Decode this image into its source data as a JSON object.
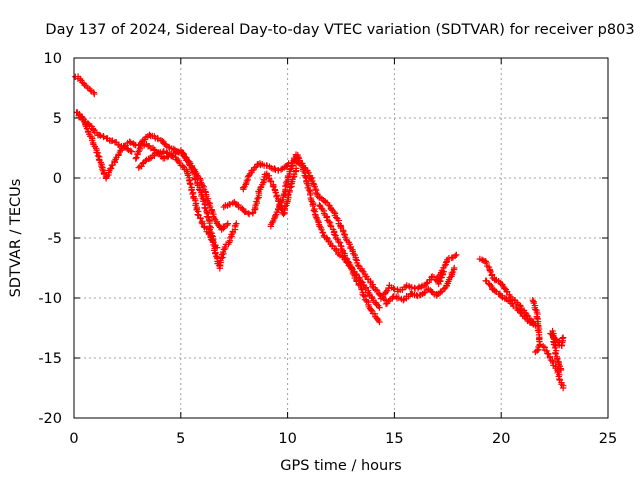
{
  "chart_data": {
    "type": "scatter",
    "title": "Day 137 of 2024, Sidereal Day-to-day VTEC variation (SDTVAR) for receiver p803",
    "xlabel": "GPS time / hours",
    "ylabel": "SDTVAR / TECUs",
    "xlim": [
      0,
      25
    ],
    "ylim": [
      -20,
      10
    ],
    "xticks": [
      0,
      5,
      10,
      15,
      20,
      25
    ],
    "yticks": [
      -20,
      -15,
      -10,
      -5,
      0,
      5,
      10
    ],
    "grid": true,
    "marker": "+",
    "color": "#ff0000",
    "series": [
      {
        "name": "SDTVAR",
        "tracks": [
          [
            [
              0.1,
              8.5
            ],
            [
              0.4,
              8.0
            ],
            [
              0.7,
              7.4
            ],
            [
              0.95,
              7.0
            ]
          ],
          [
            [
              0.1,
              5.5
            ],
            [
              0.4,
              5.0
            ],
            [
              0.7,
              3.8
            ],
            [
              1.0,
              2.5
            ],
            [
              1.3,
              1.0
            ],
            [
              1.5,
              0.0
            ],
            [
              1.8,
              1.0
            ],
            [
              2.2,
              2.3
            ],
            [
              2.6,
              3.0
            ],
            [
              3.0,
              2.7
            ],
            [
              3.4,
              2.8
            ],
            [
              3.8,
              2.3
            ],
            [
              4.2,
              1.6
            ],
            [
              4.6,
              1.9
            ],
            [
              5.0,
              2.3
            ],
            [
              5.4,
              1.2
            ],
            [
              5.7,
              0.0
            ],
            [
              6.0,
              -1.5
            ],
            [
              6.3,
              -3.5
            ],
            [
              6.6,
              -6.0
            ],
            [
              6.8,
              -7.5
            ],
            [
              7.0,
              -6.0
            ],
            [
              7.3,
              -5.2
            ],
            [
              7.6,
              -3.8
            ]
          ],
          [
            [
              0.2,
              5.2
            ],
            [
              0.5,
              4.7
            ],
            [
              0.8,
              4.3
            ],
            [
              1.1,
              3.6
            ],
            [
              1.5,
              3.3
            ],
            [
              1.9,
              3.0
            ],
            [
              2.3,
              2.6
            ],
            [
              2.7,
              2.2
            ]
          ],
          [
            [
              2.9,
              1.6
            ],
            [
              3.2,
              3.0
            ],
            [
              3.5,
              3.6
            ],
            [
              3.9,
              3.3
            ],
            [
              4.3,
              2.8
            ],
            [
              4.7,
              2.3
            ],
            [
              5.1,
              2.0
            ],
            [
              5.4,
              1.3
            ],
            [
              5.7,
              0.5
            ],
            [
              6.0,
              -0.5
            ],
            [
              6.3,
              -2.0
            ],
            [
              6.6,
              -3.5
            ],
            [
              6.9,
              -4.3
            ],
            [
              7.2,
              -3.8
            ]
          ],
          [
            [
              3.0,
              0.8
            ],
            [
              3.4,
              1.5
            ],
            [
              3.8,
              2.0
            ],
            [
              4.3,
              2.2
            ],
            [
              4.8,
              1.6
            ],
            [
              5.3,
              0.5
            ],
            [
              5.6,
              -1.5
            ],
            [
              5.8,
              -3.0
            ],
            [
              6.1,
              -4.0
            ],
            [
              6.4,
              -5.0
            ],
            [
              6.7,
              -5.8
            ]
          ],
          [
            [
              7.0,
              -2.4
            ],
            [
              7.5,
              -2.0
            ],
            [
              7.8,
              -2.5
            ],
            [
              8.2,
              -3.0
            ]
          ],
          [
            [
              7.9,
              -1.0
            ],
            [
              8.2,
              0.2
            ],
            [
              8.6,
              1.2
            ],
            [
              9.0,
              1.0
            ],
            [
              9.3,
              0.8
            ],
            [
              9.6,
              0.6
            ],
            [
              10.0,
              1.1
            ],
            [
              10.4,
              1.4
            ],
            [
              10.8,
              0.9
            ],
            [
              11.1,
              0.0
            ],
            [
              11.4,
              -1.5
            ],
            [
              11.8,
              -2.0
            ],
            [
              12.2,
              -3.0
            ],
            [
              12.6,
              -4.5
            ],
            [
              13.0,
              -6.0
            ],
            [
              13.4,
              -7.5
            ],
            [
              13.8,
              -8.5
            ],
            [
              14.2,
              -9.5
            ],
            [
              14.6,
              -10.2
            ]
          ],
          [
            [
              8.4,
              -3.0
            ],
            [
              8.7,
              -1.0
            ],
            [
              9.0,
              0.4
            ],
            [
              9.3,
              -0.5
            ],
            [
              9.6,
              -2.0
            ],
            [
              9.8,
              -3.0
            ],
            [
              10.1,
              -1.0
            ],
            [
              10.4,
              0.8
            ]
          ],
          [
            [
              9.2,
              -4.0
            ],
            [
              9.5,
              -3.0
            ],
            [
              9.8,
              -1.5
            ],
            [
              10.1,
              0.5
            ],
            [
              10.4,
              2.0
            ],
            [
              10.7,
              1.0
            ],
            [
              11.0,
              -1.0
            ],
            [
              11.3,
              -3.0
            ],
            [
              11.6,
              -4.5
            ],
            [
              12.0,
              -5.5
            ],
            [
              12.4,
              -6.3
            ],
            [
              12.8,
              -7.0
            ],
            [
              13.2,
              -8.0
            ],
            [
              13.6,
              -9.0
            ],
            [
              14.0,
              -10.2
            ],
            [
              14.3,
              -10.8
            ]
          ],
          [
            [
              11.5,
              -2.2
            ],
            [
              11.9,
              -3.5
            ],
            [
              12.3,
              -5.0
            ],
            [
              12.7,
              -6.5
            ],
            [
              13.1,
              -8.0
            ],
            [
              13.5,
              -9.5
            ],
            [
              13.9,
              -11.0
            ],
            [
              14.3,
              -12.0
            ]
          ],
          [
            [
              14.4,
              -10.0
            ],
            [
              14.8,
              -9.0
            ],
            [
              15.2,
              -9.4
            ],
            [
              15.6,
              -9.0
            ],
            [
              16.0,
              -9.2
            ],
            [
              16.4,
              -9.0
            ],
            [
              16.8,
              -8.2
            ],
            [
              17.1,
              -8.8
            ],
            [
              17.3,
              -7.8
            ]
          ],
          [
            [
              14.6,
              -10.5
            ],
            [
              15.0,
              -9.8
            ],
            [
              15.4,
              -10.2
            ],
            [
              15.8,
              -9.6
            ],
            [
              16.2,
              -9.8
            ],
            [
              16.6,
              -9.3
            ],
            [
              17.0,
              -9.8
            ],
            [
              17.4,
              -9.2
            ],
            [
              17.8,
              -7.5
            ]
          ],
          [
            [
              17.0,
              -8.5
            ],
            [
              17.5,
              -6.8
            ],
            [
              17.9,
              -6.4
            ]
          ],
          [
            [
              19.0,
              -6.8
            ],
            [
              19.3,
              -7.0
            ],
            [
              19.6,
              -8.3
            ],
            [
              20.0,
              -8.8
            ],
            [
              20.4,
              -9.8
            ],
            [
              20.8,
              -10.5
            ],
            [
              21.1,
              -11.2
            ],
            [
              21.4,
              -11.8
            ],
            [
              21.6,
              -12.3
            ]
          ],
          [
            [
              19.3,
              -8.5
            ],
            [
              19.6,
              -9.3
            ],
            [
              20.0,
              -9.8
            ],
            [
              20.4,
              -10.3
            ],
            [
              20.8,
              -11.0
            ],
            [
              21.2,
              -11.8
            ],
            [
              21.5,
              -12.2
            ]
          ],
          [
            [
              21.5,
              -10.2
            ],
            [
              21.7,
              -11.5
            ],
            [
              21.8,
              -14.0
            ],
            [
              21.6,
              -14.5
            ]
          ],
          [
            [
              22.0,
              -14.0
            ],
            [
              22.3,
              -15.0
            ],
            [
              22.6,
              -16.0
            ],
            [
              22.9,
              -17.5
            ]
          ],
          [
            [
              22.3,
              -13.0
            ],
            [
              22.6,
              -13.5
            ],
            [
              22.8,
              -14.0
            ],
            [
              22.9,
              -13.3
            ]
          ],
          [
            [
              22.4,
              -12.8
            ],
            [
              22.6,
              -15.0
            ],
            [
              22.8,
              -16.0
            ]
          ]
        ]
      }
    ]
  }
}
